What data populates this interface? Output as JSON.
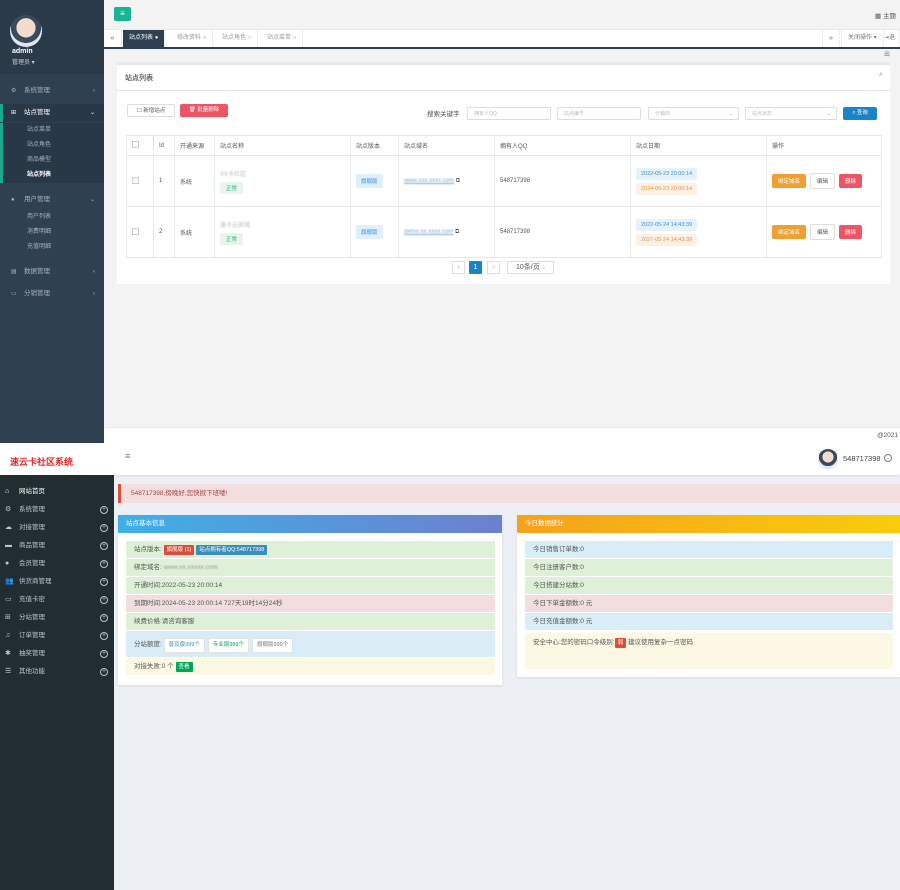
{
  "admin": {
    "profile": {
      "username": "admin",
      "role": "管理员 ▾"
    },
    "menu": [
      {
        "label": "系统管理",
        "icon": "gears-icon"
      },
      {
        "label": "站点管理",
        "icon": "sitemap-icon"
      },
      {
        "label": "用户管理",
        "icon": "user-icon"
      },
      {
        "label": "数据管理",
        "icon": "database-icon"
      },
      {
        "label": "分销管理",
        "icon": "desktop-icon"
      }
    ],
    "site_submenu": [
      "站点菜单",
      "站点角色",
      "商品模型",
      "站点列表"
    ],
    "user_submenu": [
      "用户列表",
      "消费明细",
      "充值明细"
    ],
    "header": {
      "menu_button": "≡",
      "theme": "主题"
    },
    "tabs": [
      "站点列表",
      "修改资料",
      "站点角色",
      "站点菜单"
    ],
    "tab_right": {
      "forward": "»",
      "close_ops": "关闭操作 ▾",
      "back": "退出"
    },
    "panel": {
      "title": "站点列表",
      "add_button": "新增站点",
      "batch_delete_button": "批量删除",
      "search_label": "搜索关键字",
      "filters": [
        {
          "placeholder": "拥有人QQ"
        },
        {
          "placeholder": "站点编号"
        },
        {
          "placeholder": "分销商"
        },
        {
          "placeholder": "站点状态"
        }
      ],
      "search_button": "查询"
    },
    "table": {
      "columns": [
        "",
        "Id",
        "开通来源",
        "站点名称",
        "站点版本",
        "站点域名",
        "拥有人QQ",
        "站点日期",
        "操作"
      ],
      "rows": [
        {
          "id": "1",
          "source": "系统",
          "name": "XX卡社区",
          "status": "正常",
          "version": "旗舰版",
          "domain": "www.xxx.xxxx.com",
          "owner_qq": "548717398",
          "date_start": "2022-05-23 20:00:14",
          "date_end": "2024-05-23 20:00:14"
        },
        {
          "id": "2",
          "source": "系统",
          "name": "速卡云商城",
          "status": "正常",
          "version": "旗舰版",
          "domain": "demo.xx.xxxx.com",
          "owner_qq": "548717398",
          "date_start": "2022-05-24 14:43:39",
          "date_end": "2027-05-24 14:43:39"
        }
      ],
      "actions": {
        "bind": "绑定域名",
        "edit": "编辑",
        "delete": "删除"
      }
    },
    "pager": {
      "prev": "‹",
      "page": "1",
      "next": "›",
      "per_page": "10条/页"
    },
    "footer": "@2021"
  },
  "front": {
    "brand": "速云卡社区系统",
    "user_qq": "548717398",
    "menu": [
      {
        "label": "网站首页",
        "icon": "home-icon"
      },
      {
        "label": "系统管理",
        "icon": "gears-icon"
      },
      {
        "label": "对接管理",
        "icon": "cloud-icon"
      },
      {
        "label": "商品管理",
        "icon": "folder-icon"
      },
      {
        "label": "会员管理",
        "icon": "user-icon"
      },
      {
        "label": "供货商管理",
        "icon": "users-icon"
      },
      {
        "label": "充值卡密",
        "icon": "credit-card-icon"
      },
      {
        "label": "分站管理",
        "icon": "sitemap-icon"
      },
      {
        "label": "订单管理",
        "icon": "bell-icon"
      },
      {
        "label": "抽奖管理",
        "icon": "asterisk-icon"
      },
      {
        "label": "其他功能",
        "icon": "bars-icon"
      }
    ],
    "alert": "548717398,傍晚好,您快掀下班喽!",
    "site_info": {
      "title": "站点基本信息",
      "version_label": "站点版本:",
      "version_tag": "旗舰版 (1)",
      "owner_tag": "站点拥有者QQ:548717398",
      "domain_label": "绑定域名:",
      "domain_value": "www.xx.xxxxx.com",
      "open_time": "开通时间:2022-05-23 20:00:14",
      "expire_time": "到期时间:2024-05-23 20:00:14 727天19时14分24秒",
      "renew_price": "续费价格:请咨询客服",
      "quota_label": "分站额度:",
      "quotas": [
        "普及版999个",
        "专业版999个",
        "旗舰版999个"
      ],
      "dock_fail_label": "对接失败:0 个",
      "dock_fail_tag": "查看"
    },
    "today": {
      "title": "今日数据统计",
      "rows": [
        "今日销售订单数:0",
        "今日注册客户数:0",
        "今日搭建分站数:0",
        "今日下单金额数:0 元",
        "今日充值金额数:0 元"
      ],
      "security_prefix": "安全中心:您的密码口令级别:",
      "security_level": "弱",
      "security_suffix": " 建议使用复杂一点密码"
    }
  },
  "colors": {
    "admin_sidebar": "#2f4050",
    "admin_accent": "#1ab394",
    "front_sidebar": "#222d32",
    "brand_red": "#e4262b",
    "site_info_header": "#3c8dbc",
    "today_header": "#f39c12"
  }
}
